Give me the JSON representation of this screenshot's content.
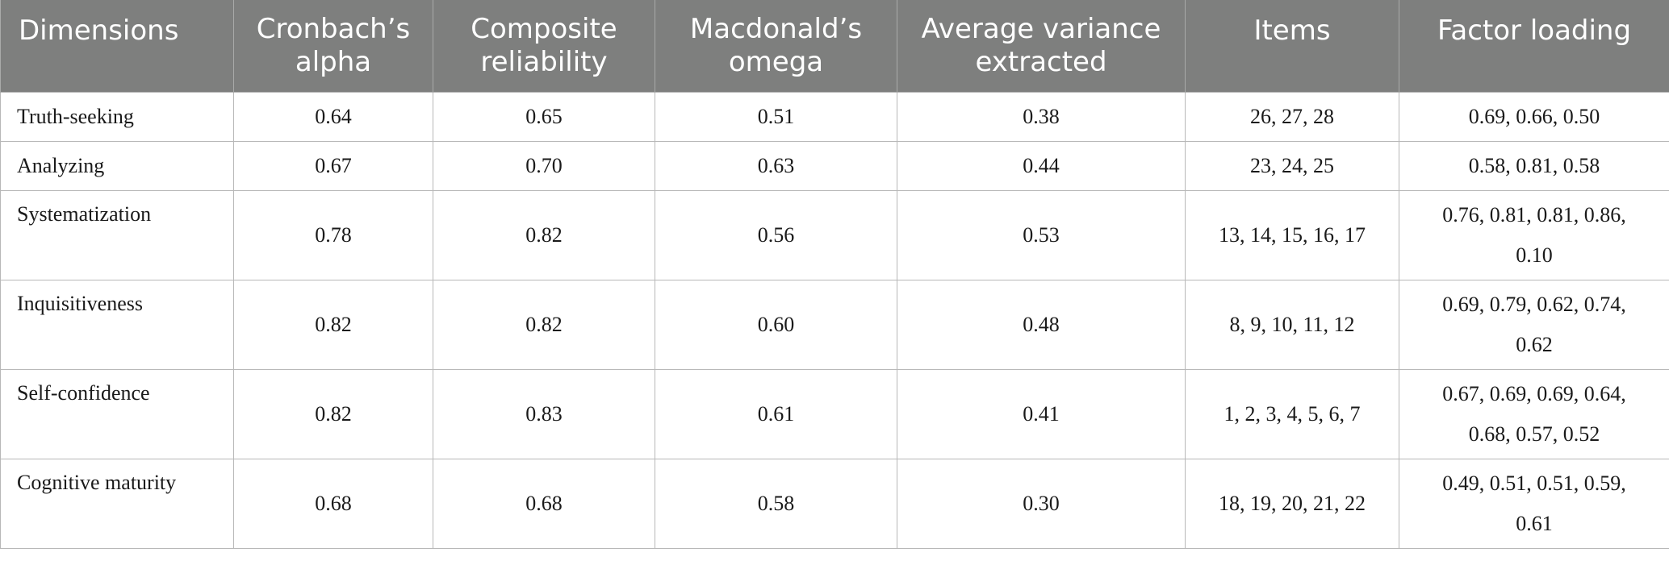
{
  "table": {
    "headers": [
      "Dimensions",
      "Cronbach’s alpha",
      "Composite reliability",
      "Macdonald’s omega",
      "Average variance extracted",
      "Items",
      "Factor loading"
    ],
    "header_lines": [
      [
        "Dimensions",
        ""
      ],
      [
        "Cronbach’s",
        "alpha"
      ],
      [
        "Composite",
        "reliability"
      ],
      [
        "Macdonald’s",
        "omega"
      ],
      [
        "Average variance",
        "extracted"
      ],
      [
        "Items",
        ""
      ],
      [
        "Factor loading",
        ""
      ]
    ],
    "rows": [
      {
        "dimension": "Truth-seeking",
        "alpha": "0.64",
        "composite": "0.65",
        "omega": "0.51",
        "ave": "0.38",
        "items": "26, 27, 28",
        "loading_1": "0.69, 0.66, 0.50",
        "loading_2": ""
      },
      {
        "dimension": "Analyzing",
        "alpha": "0.67",
        "composite": "0.70",
        "omega": "0.63",
        "ave": "0.44",
        "items": "23, 24, 25",
        "loading_1": "0.58, 0.81, 0.58",
        "loading_2": ""
      },
      {
        "dimension": "Systematization",
        "alpha": "0.78",
        "composite": "0.82",
        "omega": "0.56",
        "ave": "0.53",
        "items": "13, 14, 15, 16, 17",
        "loading_1": "0.76, 0.81, 0.81, 0.86,",
        "loading_2": "0.10"
      },
      {
        "dimension": "Inquisitiveness",
        "alpha": "0.82",
        "composite": "0.82",
        "omega": "0.60",
        "ave": "0.48",
        "items": "8, 9, 10, 11, 12",
        "loading_1": "0.69, 0.79, 0.62, 0.74,",
        "loading_2": "0.62"
      },
      {
        "dimension": "Self-confidence",
        "alpha": "0.82",
        "composite": "0.83",
        "omega": "0.61",
        "ave": "0.41",
        "items": "1, 2, 3, 4, 5, 6, 7",
        "loading_1": "0.67, 0.69, 0.69, 0.64,",
        "loading_2": "0.68, 0.57, 0.52"
      },
      {
        "dimension": "Cognitive maturity",
        "alpha": "0.68",
        "composite": "0.68",
        "omega": "0.58",
        "ave": "0.30",
        "items": "18, 19, 20, 21, 22",
        "loading_1": "0.49, 0.51, 0.51, 0.59,",
        "loading_2": "0.61"
      }
    ]
  }
}
